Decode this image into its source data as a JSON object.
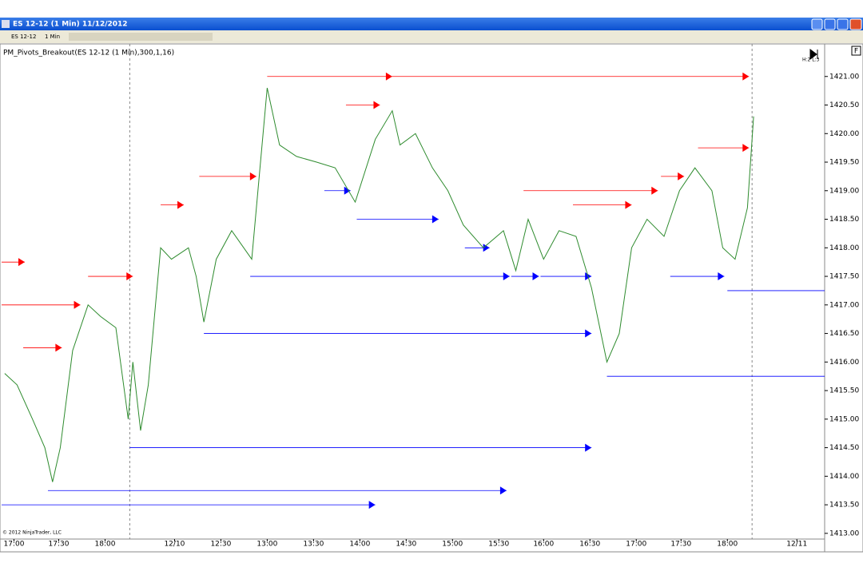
{
  "window": {
    "title": "ES 12-12 (1 Min)  11/12/2012",
    "toolbar": {
      "instrument": "ES 12-12",
      "interval": "1 Min"
    }
  },
  "chart_data": {
    "type": "line",
    "title": "PM_Pivots_Breakout(ES 12-12 (1 Min),300,1,16)",
    "copyright": "© 2012 NinjaTrader, LLC",
    "status": "H:2 L:3",
    "panel_button": "F",
    "x": [
      -6,
      2,
      12,
      20,
      25,
      30,
      38,
      48,
      56,
      66,
      74,
      77,
      82,
      87,
      95,
      102,
      113,
      118,
      123,
      131,
      141,
      154,
      159,
      164,
      172,
      183,
      196,
      208,
      221,
      234,
      245,
      250,
      260,
      271,
      281,
      291,
      304,
      317,
      325,
      333,
      343,
      353,
      364,
      374,
      384,
      392,
      400,
      410,
      421,
      431,
      441,
      452,
      459,
      467,
      475,
      479
    ],
    "series": [
      {
        "name": "ES 12-12 (1 Min)",
        "color": "#2e8b2e",
        "values": [
          1415.8,
          1415.6,
          1415.0,
          1414.5,
          1413.9,
          1414.5,
          1416.2,
          1417.0,
          1416.8,
          1416.6,
          1415.0,
          1416.0,
          1414.8,
          1415.6,
          1418.0,
          1417.8,
          1418.0,
          1417.5,
          1416.7,
          1417.8,
          1418.3,
          1417.8,
          1419.3,
          1420.8,
          1419.8,
          1419.6,
          1419.5,
          1419.4,
          1418.8,
          1419.9,
          1420.4,
          1419.8,
          1420.0,
          1419.4,
          1419.0,
          1418.4,
          1418.0,
          1418.3,
          1417.6,
          1418.5,
          1417.8,
          1418.3,
          1418.2,
          1417.3,
          1416.0,
          1416.5,
          1418.0,
          1418.5,
          1418.2,
          1419.0,
          1419.4,
          1419.0,
          1418.0,
          1417.8,
          1418.7,
          1420.3
        ]
      }
    ],
    "resistance": {
      "color": "#ff0000",
      "levels": [
        {
          "value": 1417.75,
          "start": -8,
          "end": 7
        },
        {
          "value": 1417.0,
          "start": -8,
          "end": 43
        },
        {
          "value": 1416.25,
          "start": 6,
          "end": 31
        },
        {
          "value": 1417.5,
          "start": 48,
          "end": 77
        },
        {
          "value": 1418.75,
          "start": 95,
          "end": 110
        },
        {
          "value": 1419.25,
          "start": 120,
          "end": 157
        },
        {
          "value": 1421.0,
          "start": 164,
          "end": 245
        },
        {
          "value": 1420.5,
          "start": 215,
          "end": 237
        },
        {
          "value": 1421.0,
          "start": 245,
          "end": 476
        },
        {
          "value": 1419.0,
          "start": 330,
          "end": 417
        },
        {
          "value": 1418.75,
          "start": 362,
          "end": 400
        },
        {
          "value": 1419.25,
          "start": 419,
          "end": 434
        },
        {
          "value": 1419.75,
          "start": 443,
          "end": 476
        }
      ]
    },
    "support": {
      "color": "#0000ff",
      "levels": [
        {
          "value": 1413.5,
          "start": -8,
          "end": 234
        },
        {
          "value": 1413.75,
          "start": 22,
          "end": 319
        },
        {
          "value": 1414.5,
          "start": 75,
          "end": 374
        },
        {
          "value": 1416.5,
          "start": 123,
          "end": 374
        },
        {
          "value": 1417.5,
          "start": 153,
          "end": 321
        },
        {
          "value": 1419.0,
          "start": 201,
          "end": 218
        },
        {
          "value": 1418.5,
          "start": 222,
          "end": 275
        },
        {
          "value": 1418.0,
          "start": 292,
          "end": 308
        },
        {
          "value": 1417.5,
          "start": 322,
          "end": 340
        },
        {
          "value": 1417.5,
          "start": 341,
          "end": 374
        },
        {
          "value": 1415.75,
          "start": 384,
          "end": 525
        },
        {
          "value": 1417.5,
          "start": 425,
          "end": 460
        },
        {
          "value": 1417.25,
          "start": 462,
          "end": 525
        }
      ]
    },
    "session_breaks": [
      75,
      478
    ],
    "xlim": [
      -8,
      525
    ],
    "ylim": [
      1412.9,
      1421.5
    ],
    "xticks": [
      {
        "value": 0,
        "label": "17:00"
      },
      {
        "value": 29,
        "label": "17:30"
      },
      {
        "value": 59,
        "label": "18:00"
      },
      {
        "value": 104,
        "label": "12/10"
      },
      {
        "value": 134,
        "label": "12:30"
      },
      {
        "value": 164,
        "label": "13:00"
      },
      {
        "value": 194,
        "label": "13:30"
      },
      {
        "value": 224,
        "label": "14:00"
      },
      {
        "value": 254,
        "label": "14:30"
      },
      {
        "value": 284,
        "label": "15:00"
      },
      {
        "value": 314,
        "label": "15:30"
      },
      {
        "value": 343,
        "label": "16:00"
      },
      {
        "value": 373,
        "label": "16:30"
      },
      {
        "value": 403,
        "label": "17:00"
      },
      {
        "value": 432,
        "label": "17:30"
      },
      {
        "value": 462,
        "label": "18:00"
      },
      {
        "value": 507,
        "label": "12/11"
      }
    ],
    "yticks": [
      {
        "value": 1413,
        "label": "1413.00"
      },
      {
        "value": 1413.5,
        "label": "1413.50"
      },
      {
        "value": 1414,
        "label": "1414.00"
      },
      {
        "value": 1414.5,
        "label": "1414.50"
      },
      {
        "value": 1415,
        "label": "1415.00"
      },
      {
        "value": 1415.5,
        "label": "1415.50"
      },
      {
        "value": 1416,
        "label": "1416.00"
      },
      {
        "value": 1416.5,
        "label": "1416.50"
      },
      {
        "value": 1417,
        "label": "1417.00"
      },
      {
        "value": 1417.5,
        "label": "1417.50"
      },
      {
        "value": 1418,
        "label": "1418.00"
      },
      {
        "value": 1418.5,
        "label": "1418.50"
      },
      {
        "value": 1419,
        "label": "1419.00"
      },
      {
        "value": 1419.5,
        "label": "1419.50"
      },
      {
        "value": 1420,
        "label": "1420.00"
      },
      {
        "value": 1420.5,
        "label": "1420.50"
      },
      {
        "value": 1421,
        "label": "1421.00"
      }
    ]
  }
}
